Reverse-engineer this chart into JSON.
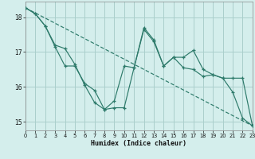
{
  "xlabel": "Humidex (Indice chaleur)",
  "background_color": "#d4eeec",
  "grid_color": "#aacfcb",
  "line_color": "#2d7a6a",
  "xlim": [
    0,
    23
  ],
  "ylim": [
    14.75,
    18.45
  ],
  "yticks": [
    15,
    16,
    17,
    18
  ],
  "xticks": [
    0,
    1,
    2,
    3,
    4,
    5,
    6,
    7,
    8,
    9,
    10,
    11,
    12,
    13,
    14,
    15,
    16,
    17,
    18,
    19,
    20,
    21,
    22,
    23
  ],
  "series1_x": [
    0,
    1,
    2,
    3,
    4,
    5,
    6,
    7,
    8,
    9,
    10,
    11,
    12,
    13,
    14,
    15,
    16,
    17,
    18,
    19,
    20,
    21,
    22,
    23
  ],
  "series1_y": [
    18.27,
    18.1,
    17.75,
    17.15,
    16.6,
    16.6,
    16.1,
    15.9,
    15.35,
    15.4,
    15.4,
    16.55,
    17.65,
    17.3,
    16.6,
    16.85,
    16.85,
    17.05,
    16.5,
    16.35,
    16.25,
    15.85,
    15.1,
    14.88
  ],
  "series2_x": [
    0,
    1,
    2,
    3,
    4,
    5,
    6,
    7,
    8,
    9,
    10,
    11,
    12,
    13,
    14,
    15,
    16,
    17,
    18,
    19,
    20,
    21,
    22,
    23
  ],
  "series2_y": [
    18.27,
    18.1,
    17.75,
    17.2,
    17.1,
    16.65,
    16.05,
    15.55,
    15.35,
    15.6,
    16.6,
    16.55,
    17.7,
    17.35,
    16.6,
    16.85,
    16.55,
    16.5,
    16.3,
    16.35,
    16.25,
    16.25,
    16.25,
    14.88
  ],
  "series3_x": [
    0,
    23
  ],
  "series3_y": [
    18.27,
    14.88
  ]
}
